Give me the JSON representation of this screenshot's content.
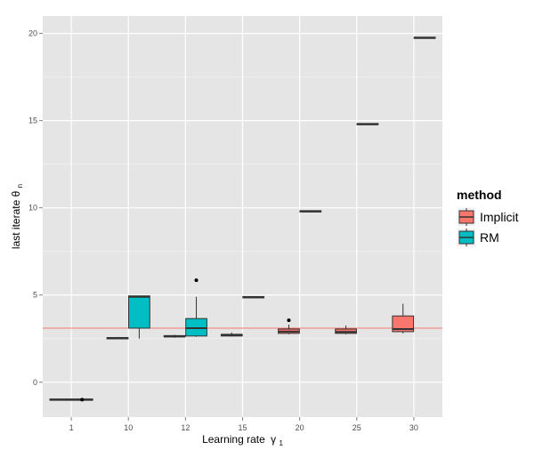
{
  "chart_data": {
    "type": "box",
    "xlabel": "Learning rate",
    "xlabel_symbol": "γ",
    "xlabel_sub": "1",
    "ylabel": "last iterate θ",
    "ylabel_sub": "n",
    "ylim": [
      -2,
      21
    ],
    "yticks": [
      0,
      5,
      10,
      15,
      20
    ],
    "categories": [
      "1",
      "10",
      "12",
      "15",
      "20",
      "25",
      "30"
    ],
    "reference_line": {
      "y": 3.1,
      "color": "#f8766d"
    },
    "grid": true,
    "legend": {
      "title": "method",
      "position": "right"
    },
    "series": [
      {
        "name": "Implicit",
        "color": "#f8766d",
        "boxes": [
          {
            "category": "1",
            "min": -1,
            "q1": -1,
            "median": -1,
            "q3": -1,
            "max": -1,
            "outliers": []
          },
          {
            "category": "10",
            "min": 2.5,
            "q1": 2.5,
            "median": 2.52,
            "q3": 2.55,
            "max": 2.6,
            "outliers": []
          },
          {
            "category": "12",
            "min": 2.55,
            "q1": 2.6,
            "median": 2.63,
            "q3": 2.67,
            "max": 2.72,
            "outliers": []
          },
          {
            "category": "15",
            "min": 2.62,
            "q1": 2.65,
            "median": 2.7,
            "q3": 2.75,
            "max": 2.85,
            "outliers": []
          },
          {
            "category": "20",
            "min": 2.75,
            "q1": 2.8,
            "median": 2.9,
            "q3": 3.05,
            "max": 3.3,
            "outliers": [
              3.55
            ]
          },
          {
            "category": "25",
            "min": 2.75,
            "q1": 2.8,
            "median": 2.88,
            "q3": 3.05,
            "max": 3.25,
            "outliers": []
          },
          {
            "category": "30",
            "min": 2.8,
            "q1": 2.9,
            "median": 3.05,
            "q3": 3.8,
            "max": 4.5,
            "outliers": []
          }
        ]
      },
      {
        "name": "RM",
        "color": "#00bfc4",
        "boxes": [
          {
            "category": "1",
            "min": -1,
            "q1": -1,
            "median": -1,
            "q3": -1,
            "max": -1,
            "outliers": [
              -1
            ]
          },
          {
            "category": "10",
            "min": 2.5,
            "q1": 3.1,
            "median": 4.9,
            "q3": 4.95,
            "max": 4.95,
            "outliers": []
          },
          {
            "category": "12",
            "min": 2.6,
            "q1": 2.65,
            "median": 3.1,
            "q3": 3.65,
            "max": 4.9,
            "outliers": [
              5.85
            ]
          },
          {
            "category": "15",
            "min": 4.82,
            "q1": 4.85,
            "median": 4.87,
            "q3": 4.9,
            "max": 4.93,
            "outliers": []
          },
          {
            "category": "20",
            "min": 9.8,
            "q1": 9.8,
            "median": 9.8,
            "q3": 9.8,
            "max": 9.8,
            "outliers": []
          },
          {
            "category": "25",
            "min": 14.8,
            "q1": 14.8,
            "median": 14.8,
            "q3": 14.8,
            "max": 14.8,
            "outliers": []
          },
          {
            "category": "30",
            "min": 19.75,
            "q1": 19.75,
            "median": 19.75,
            "q3": 19.75,
            "max": 19.75,
            "outliers": []
          }
        ]
      }
    ]
  }
}
